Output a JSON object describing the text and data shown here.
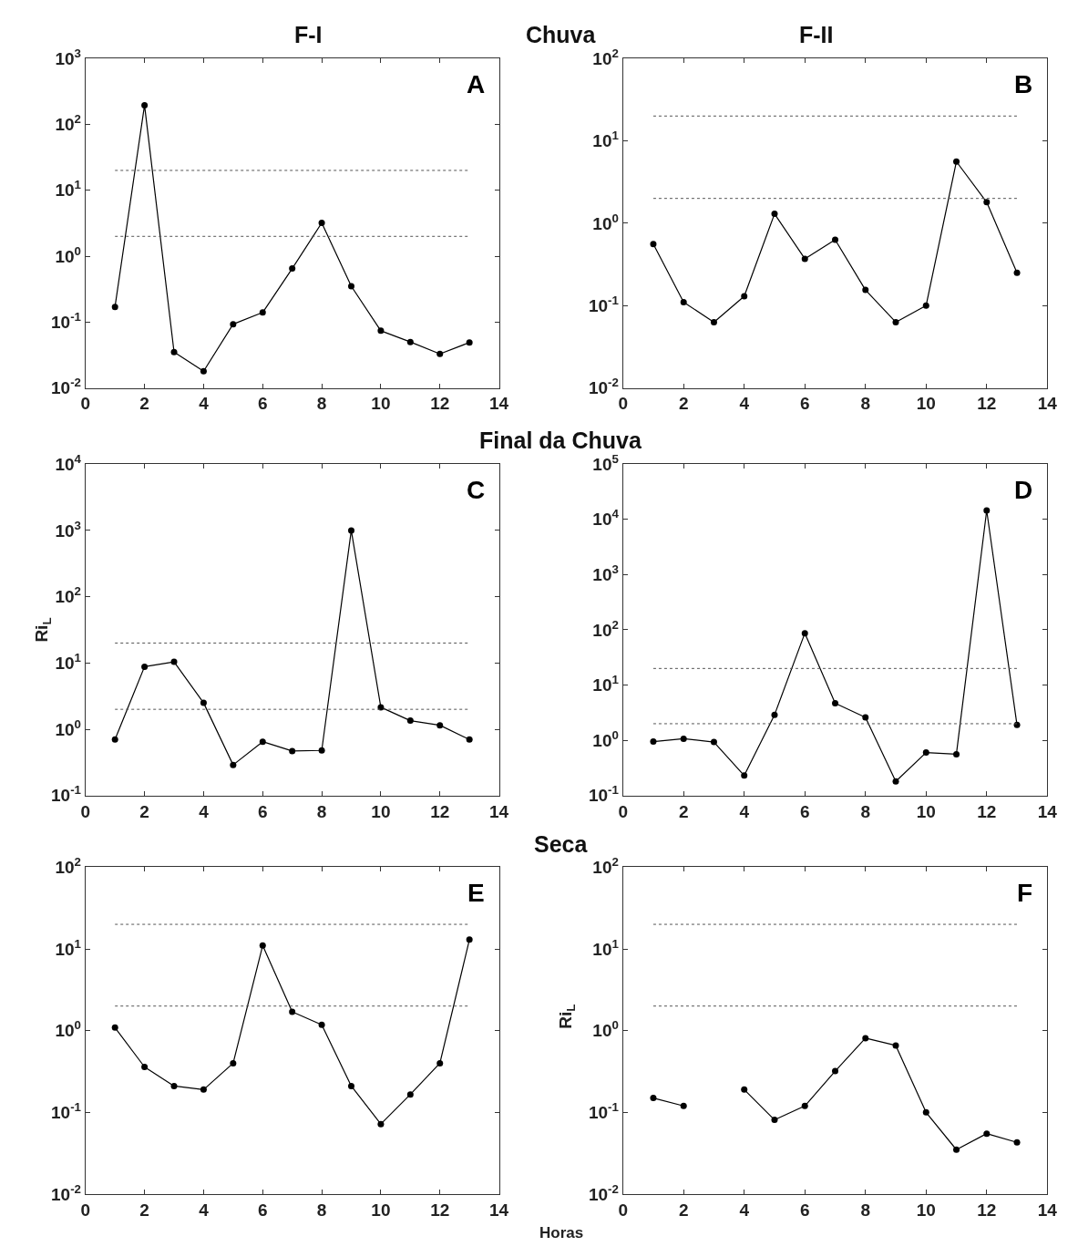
{
  "chart_data": [
    {
      "type": "line",
      "title": "F-I",
      "annotations": [
        "A",
        "Chuva"
      ],
      "x": [
        1,
        2,
        3,
        4,
        5,
        6,
        7,
        8,
        9,
        10,
        11,
        12,
        13
      ],
      "series": [
        {
          "color": "#000000",
          "values": [
            0.17,
            195,
            0.035,
            0.018,
            0.093,
            0.14,
            0.65,
            3.2,
            0.35,
            0.074,
            0.05,
            0.033,
            0.049
          ]
        }
      ],
      "log": "y",
      "xlim": [
        0,
        14
      ],
      "xticks": [
        0,
        2,
        4,
        6,
        8,
        10,
        12,
        14
      ],
      "ylim": [
        0.01,
        1000
      ],
      "yticks": [
        {
          "value": 0.01,
          "label": "10$^{-2}$"
        },
        {
          "value": 0.1,
          "label": "10$^{-1}$"
        },
        {
          "value": 1,
          "label": "10$^{0}$"
        },
        {
          "value": 10,
          "label": "10$^{1}$"
        },
        {
          "value": 100,
          "label": "10$^{2}$"
        },
        {
          "value": 1000,
          "label": "10$^{3}$"
        }
      ],
      "ref_lines": [
        {
          "axis": "y",
          "value": 2,
          "color": "#555555",
          "line_style": "dotted"
        },
        {
          "axis": "y",
          "value": 20,
          "color": "#555555",
          "line_style": "dotted"
        }
      ],
      "marker": "circle",
      "line_style": "solid"
    },
    {
      "type": "line",
      "title": "F-II",
      "annotations": [
        "B"
      ],
      "x": [
        1,
        2,
        3,
        4,
        5,
        6,
        7,
        8,
        9,
        10,
        11,
        12,
        13
      ],
      "series": [
        {
          "color": "#000000",
          "values": [
            0.56,
            0.11,
            0.063,
            0.13,
            1.3,
            0.37,
            0.63,
            0.155,
            0.063,
            0.1,
            5.6,
            1.8,
            0.25
          ]
        }
      ],
      "log": "y",
      "xlim": [
        0,
        14
      ],
      "xticks": [
        0,
        2,
        4,
        6,
        8,
        10,
        12,
        14
      ],
      "ylim": [
        0.01,
        100
      ],
      "yticks": [
        {
          "value": 0.01,
          "label": "10$^{-2}$"
        },
        {
          "value": 0.1,
          "label": "10$^{-1}$"
        },
        {
          "value": 1,
          "label": "10$^{0}$"
        },
        {
          "value": 10,
          "label": "10$^{1}$"
        },
        {
          "value": 100,
          "label": "10$^{2}$"
        }
      ],
      "ref_lines": [
        {
          "axis": "y",
          "value": 2,
          "color": "#555555",
          "line_style": "dotted"
        },
        {
          "axis": "y",
          "value": 20,
          "color": "#555555",
          "line_style": "dotted"
        }
      ],
      "marker": "circle",
      "line_style": "solid"
    },
    {
      "type": "line",
      "ylabel": "Ri$_{L}$",
      "annotations": [
        "C",
        "Final da Chuva"
      ],
      "x": [
        1,
        2,
        3,
        4,
        5,
        6,
        7,
        8,
        9,
        10,
        11,
        12,
        13
      ],
      "series": [
        {
          "color": "#000000",
          "values": [
            0.7,
            8.8,
            10.4,
            2.5,
            0.29,
            0.65,
            0.47,
            0.48,
            1000,
            2.15,
            1.35,
            1.15,
            0.7
          ]
        }
      ],
      "log": "y",
      "xlim": [
        0,
        14
      ],
      "xticks": [
        0,
        2,
        4,
        6,
        8,
        10,
        12,
        14
      ],
      "ylim": [
        0.1,
        10000
      ],
      "yticks": [
        {
          "value": 0.1,
          "label": "10$^{-1}$"
        },
        {
          "value": 1,
          "label": "10$^{0}$"
        },
        {
          "value": 10,
          "label": "10$^{1}$"
        },
        {
          "value": 100,
          "label": "10$^{2}$"
        },
        {
          "value": 1000,
          "label": "10$^{3}$"
        },
        {
          "value": 10000,
          "label": "10$^{4}$"
        }
      ],
      "ref_lines": [
        {
          "axis": "y",
          "value": 2,
          "color": "#555555",
          "line_style": "dotted"
        },
        {
          "axis": "y",
          "value": 20,
          "color": "#555555",
          "line_style": "dotted"
        }
      ],
      "marker": "circle",
      "line_style": "solid"
    },
    {
      "type": "line",
      "annotations": [
        "D"
      ],
      "x": [
        1,
        2,
        3,
        4,
        5,
        6,
        7,
        8,
        9,
        10,
        11,
        12,
        13
      ],
      "series": [
        {
          "color": "#000000",
          "values": [
            0.95,
            1.07,
            0.93,
            0.23,
            2.9,
            87,
            4.7,
            2.6,
            0.18,
            0.6,
            0.56,
            14500,
            1.9
          ]
        }
      ],
      "log": "y",
      "xlim": [
        0,
        14
      ],
      "xticks": [
        0,
        2,
        4,
        6,
        8,
        10,
        12,
        14
      ],
      "ylim": [
        0.1,
        100000
      ],
      "yticks": [
        {
          "value": 0.1,
          "label": "10$^{-1}$"
        },
        {
          "value": 1,
          "label": "10$^{0}$"
        },
        {
          "value": 10,
          "label": "10$^{1}$"
        },
        {
          "value": 100,
          "label": "10$^{2}$"
        },
        {
          "value": 1000,
          "label": "10$^{3}$"
        },
        {
          "value": 10000,
          "label": "10$^{4}$"
        },
        {
          "value": 100000,
          "label": "10$^{5}$"
        }
      ],
      "ref_lines": [
        {
          "axis": "y",
          "value": 2,
          "color": "#555555",
          "line_style": "dotted"
        },
        {
          "axis": "y",
          "value": 20,
          "color": "#555555",
          "line_style": "dotted"
        }
      ],
      "marker": "circle",
      "line_style": "solid"
    },
    {
      "type": "line",
      "xlabel": "Horas",
      "annotations": [
        "E",
        "Seca"
      ],
      "x": [
        1,
        2,
        3,
        4,
        5,
        6,
        7,
        8,
        9,
        10,
        11,
        12,
        13
      ],
      "series": [
        {
          "color": "#000000",
          "values": [
            1.09,
            0.36,
            0.21,
            0.19,
            0.4,
            11,
            1.7,
            1.18,
            0.21,
            0.072,
            0.166,
            0.4,
            13
          ]
        }
      ],
      "log": "y",
      "xlim": [
        0,
        14
      ],
      "xticks": [
        0,
        2,
        4,
        6,
        8,
        10,
        12,
        14
      ],
      "ylim": [
        0.01,
        100
      ],
      "yticks": [
        {
          "value": 0.01,
          "label": "10$^{-2}$"
        },
        {
          "value": 0.1,
          "label": "10$^{-1}$"
        },
        {
          "value": 1,
          "label": "10$^{0}$"
        },
        {
          "value": 10,
          "label": "10$^{1}$"
        },
        {
          "value": 100,
          "label": "10$^{2}$"
        }
      ],
      "ref_lines": [
        {
          "axis": "y",
          "value": 2,
          "color": "#555555",
          "line_style": "dotted"
        },
        {
          "axis": "y",
          "value": 20,
          "color": "#555555",
          "line_style": "dotted"
        }
      ],
      "marker": "circle",
      "line_style": "solid"
    },
    {
      "type": "line",
      "ylabel": "Ri$_{L}$",
      "annotations": [
        "F"
      ],
      "x": [
        1,
        2,
        3,
        4,
        5,
        6,
        7,
        8,
        9,
        10,
        11,
        12,
        13
      ],
      "series": [
        {
          "color": "#000000",
          "values": [
            0.15,
            0.12,
            null,
            0.19,
            0.081,
            0.12,
            0.32,
            0.81,
            0.66,
            0.1,
            0.035,
            0.055,
            0.043
          ]
        }
      ],
      "log": "y",
      "xlim": [
        0,
        14
      ],
      "xticks": [
        0,
        2,
        4,
        6,
        8,
        10,
        12,
        14
      ],
      "ylim": [
        0.01,
        100
      ],
      "yticks": [
        {
          "value": 0.01,
          "label": "10$^{-2}$"
        },
        {
          "value": 0.1,
          "label": "10$^{-1}$"
        },
        {
          "value": 1,
          "label": "10$^{0}$"
        },
        {
          "value": 10,
          "label": "10$^{1}$"
        },
        {
          "value": 100,
          "label": "10$^{2}$"
        }
      ],
      "ref_lines": [
        {
          "axis": "y",
          "value": 2,
          "color": "#555555",
          "line_style": "dotted"
        },
        {
          "axis": "y",
          "value": 20,
          "color": "#555555",
          "line_style": "dotted"
        }
      ],
      "marker": "circle",
      "line_style": "solid"
    }
  ]
}
